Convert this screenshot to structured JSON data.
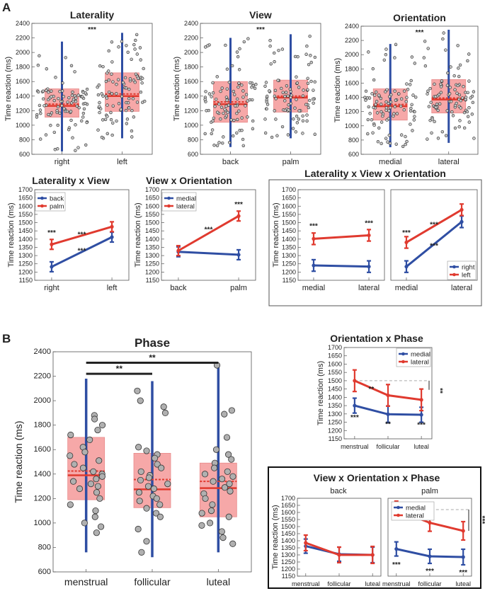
{
  "panel_labels": [
    "A",
    "B"
  ],
  "colors": {
    "blue": "#2f4ea3",
    "red": "#e03a2f",
    "boxfill": "#f6a8a8",
    "boxedge": "#e88a8a",
    "dot": "#b0b0b0",
    "dashed": "#aaaaaa"
  },
  "chart_data": [
    {
      "id": "laterality",
      "type": "box",
      "title": "Laterality",
      "ylabel": "Time reaction (ms)",
      "ylim": [
        600,
        2400
      ],
      "yticks": [
        600,
        800,
        1000,
        1200,
        1400,
        1600,
        1800,
        2000,
        2200,
        2400
      ],
      "categories": [
        "right",
        "left"
      ],
      "boxes": [
        {
          "q1": 1110,
          "q3": 1500,
          "median": 1265,
          "mean": 1290,
          "whisker_low": 640,
          "whisker_high": 2150
        },
        {
          "q1": 1190,
          "q3": 1720,
          "median": 1400,
          "mean": 1430,
          "whisker_low": 820,
          "whisker_high": 2270
        }
      ],
      "significance": "***"
    },
    {
      "id": "view",
      "type": "box",
      "title": "View",
      "ylabel": "Time reaction (ms)",
      "ylim": [
        600,
        2400
      ],
      "yticks": [
        600,
        800,
        1000,
        1200,
        1400,
        1600,
        1800,
        2000,
        2200,
        2400
      ],
      "categories": [
        "back",
        "palm"
      ],
      "boxes": [
        {
          "q1": 1040,
          "q3": 1600,
          "median": 1290,
          "mean": 1320,
          "whisker_low": 700,
          "whisker_high": 2200
        },
        {
          "q1": 1180,
          "q3": 1620,
          "median": 1380,
          "mean": 1400,
          "whisker_low": 820,
          "whisker_high": 2250
        }
      ],
      "significance": "***"
    },
    {
      "id": "orientation",
      "type": "box",
      "title": "Orientation",
      "ylabel": "Time reaction (ms)",
      "ylim": [
        600,
        2400
      ],
      "yticks": [
        600,
        800,
        1000,
        1200,
        1400,
        1600,
        1800,
        2000,
        2200,
        2400
      ],
      "categories": [
        "medial",
        "lateral"
      ],
      "boxes": [
        {
          "q1": 1080,
          "q3": 1520,
          "median": 1275,
          "mean": 1300,
          "whisker_low": 700,
          "whisker_high": 2150
        },
        {
          "q1": 1180,
          "q3": 1650,
          "median": 1370,
          "mean": 1390,
          "whisker_low": 760,
          "whisker_high": 2350
        }
      ],
      "significance": "***"
    },
    {
      "id": "lat_view",
      "type": "line",
      "title": "Laterality x View",
      "ylabel": "Time reaction (ms)",
      "ylim": [
        1150,
        1700
      ],
      "yticks": [
        1150,
        1200,
        1250,
        1300,
        1350,
        1400,
        1450,
        1500,
        1550,
        1600,
        1650,
        1700
      ],
      "categories": [
        "right",
        "left"
      ],
      "series": [
        {
          "name": "back",
          "color": "blue",
          "values": [
            1232,
            1412
          ],
          "err": [
            30,
            30
          ]
        },
        {
          "name": "palm",
          "color": "red",
          "values": [
            1368,
            1475
          ],
          "err": [
            30,
            30
          ]
        }
      ],
      "legend": [
        "back",
        "palm"
      ],
      "legend_position": "top-left",
      "annotations": [
        {
          "text": "***",
          "x": 0,
          "y": 1425
        },
        {
          "text": "***",
          "x": 0.5,
          "y": 1415
        },
        {
          "text": "***",
          "x": 0.5,
          "y": 1315
        }
      ]
    },
    {
      "id": "view_orient",
      "type": "line",
      "title": "View x Orientation",
      "ylabel": "Time reaction (ms)",
      "ylim": [
        1150,
        1700
      ],
      "yticks": [
        1150,
        1200,
        1250,
        1300,
        1350,
        1400,
        1450,
        1500,
        1550,
        1600,
        1650,
        1700
      ],
      "categories": [
        "back",
        "palm"
      ],
      "series": [
        {
          "name": "medial",
          "color": "blue",
          "values": [
            1323,
            1305
          ],
          "err": [
            30,
            30
          ]
        },
        {
          "name": "lateral",
          "color": "red",
          "values": [
            1330,
            1540
          ],
          "err": [
            30,
            30
          ]
        }
      ],
      "legend": [
        "medial",
        "lateral"
      ],
      "legend_position": "top-left",
      "annotations": [
        {
          "text": "***",
          "x": 1,
          "y": 1597
        },
        {
          "text": "***",
          "x": 0.5,
          "y": 1445
        }
      ]
    },
    {
      "id": "lat_view_orient",
      "type": "line",
      "title": "Laterality x View x Orientation",
      "ylabel": "Time reaction (ms)",
      "ylim": [
        1150,
        1700
      ],
      "yticks": [
        1150,
        1200,
        1250,
        1300,
        1350,
        1400,
        1450,
        1500,
        1550,
        1600,
        1650,
        1700
      ],
      "categories": [
        "medial",
        "lateral"
      ],
      "panels": [
        {
          "series": [
            {
              "name": "right",
              "color": "blue",
              "values": [
                1240,
                1233
              ],
              "err": [
                35,
                35
              ]
            },
            {
              "name": "left",
              "color": "red",
              "values": [
                1402,
                1423
              ],
              "err": [
                35,
                35
              ]
            }
          ],
          "annotations": [
            {
              "text": "***",
              "x": 0,
              "y": 1465
            },
            {
              "text": "***",
              "x": 1,
              "y": 1482
            }
          ]
        },
        {
          "series": [
            {
              "name": "right",
              "color": "blue",
              "values": [
                1233,
                1505
              ],
              "err": [
                35,
                35
              ]
            },
            {
              "name": "left",
              "color": "red",
              "values": [
                1380,
                1578
              ],
              "err": [
                35,
                35
              ]
            }
          ],
          "annotations": [
            {
              "text": "***",
              "x": 0,
              "y": 1425
            },
            {
              "text": "***",
              "x": 0.5,
              "y": 1475
            },
            {
              "text": "***",
              "x": 0.5,
              "y": 1345
            }
          ]
        }
      ],
      "legend": [
        "right",
        "left"
      ],
      "legend_position": "bottom-right"
    },
    {
      "id": "phase",
      "type": "box",
      "title": "Phase",
      "ylabel": "Time reaction (ms)",
      "ylim": [
        600,
        2400
      ],
      "yticks": [
        600,
        800,
        1000,
        1200,
        1400,
        1600,
        1800,
        2000,
        2200,
        2400
      ],
      "categories": [
        "menstrual",
        "follicular",
        "luteal"
      ],
      "boxes": [
        {
          "q1": 1190,
          "q3": 1700,
          "median": 1390,
          "mean": 1425,
          "whisker_low": 760,
          "whisker_high": 2180
        },
        {
          "q1": 1125,
          "q3": 1570,
          "median": 1275,
          "mean": 1355,
          "whisker_low": 720,
          "whisker_high": 2160
        },
        {
          "q1": 1050,
          "q3": 1490,
          "median": 1285,
          "mean": 1340,
          "whisker_low": 760,
          "whisker_high": 2300
        }
      ],
      "points": [
        [
          1880,
          1850,
          1800,
          1760,
          1720,
          1680,
          1620,
          1580,
          1550,
          1510,
          1480,
          1450,
          1420,
          1400,
          1380,
          1360,
          1340,
          1320,
          1300,
          1280,
          1250,
          1200,
          1150,
          1100,
          1050,
          1000,
          970,
          920
        ],
        [
          2080,
          2000,
          1950,
          1900,
          1620,
          1590,
          1560,
          1530,
          1480,
          1450,
          1420,
          1390,
          1370,
          1350,
          1320,
          1300,
          1280,
          1250,
          1220,
          1200,
          1180,
          1150,
          1120,
          1080,
          1050,
          950,
          850,
          760
        ],
        [
          2290,
          1920,
          1890,
          1700,
          1600,
          1560,
          1520,
          1490,
          1450,
          1420,
          1400,
          1380,
          1360,
          1340,
          1320,
          1290,
          1260,
          1240,
          1200,
          1150,
          1100,
          1080,
          1050,
          1000,
          980,
          930,
          880,
          830
        ]
      ],
      "brackets": [
        {
          "from": 0,
          "to": 2,
          "text": "**",
          "y": 2310
        },
        {
          "from": 0,
          "to": 1,
          "text": "**",
          "y": 2220
        }
      ]
    },
    {
      "id": "orient_phase",
      "type": "line",
      "title": "Orientation x Phase",
      "ylabel": "Time reaction (ms)",
      "ylim": [
        1150,
        1700
      ],
      "yticks": [
        1150,
        1200,
        1250,
        1300,
        1350,
        1400,
        1450,
        1500,
        1550,
        1600,
        1650,
        1700
      ],
      "categories": [
        "menstrual",
        "follicular",
        "luteal"
      ],
      "series": [
        {
          "name": "medial",
          "color": "blue",
          "values": [
            1350,
            1298,
            1295
          ],
          "err": [
            45,
            50,
            45
          ]
        },
        {
          "name": "lateral",
          "color": "red",
          "values": [
            1500,
            1412,
            1385
          ],
          "err": [
            65,
            65,
            65
          ]
        }
      ],
      "legend": [
        "medial",
        "lateral"
      ],
      "legend_position": "top-right",
      "annotations": [
        {
          "text": "***",
          "x": 0,
          "y": 1265
        },
        {
          "text": "**",
          "x": 1,
          "y": 1225
        },
        {
          "text": "***",
          "x": 2,
          "y": 1220
        },
        {
          "text": "**",
          "x": 0.5,
          "y": 1435
        },
        {
          "text": "**",
          "x": 2.5,
          "y": 1440
        }
      ],
      "reference_line": 1500
    },
    {
      "id": "view_orient_phase",
      "type": "line",
      "title": "View x Orientation x Phase",
      "ylabel": "Time reaction (ms)",
      "ylim": [
        1150,
        1700
      ],
      "yticks": [
        1150,
        1200,
        1250,
        1300,
        1350,
        1400,
        1450,
        1500,
        1550,
        1600,
        1650,
        1700
      ],
      "categories": [
        "menstrual",
        "follicular",
        "luteal"
      ],
      "panels": [
        {
          "subtitle": "back",
          "series": [
            {
              "name": "medial",
              "color": "blue",
              "values": [
                1362,
                1305,
                1300
              ],
              "err": [
                50,
                50,
                55
              ]
            },
            {
              "name": "lateral",
              "color": "red",
              "values": [
                1385,
                1300,
                1300
              ],
              "err": [
                55,
                55,
                60
              ]
            }
          ],
          "annotations": []
        },
        {
          "subtitle": "palm",
          "series": [
            {
              "name": "medial",
              "color": "blue",
              "values": [
                1342,
                1290,
                1285
              ],
              "err": [
                50,
                50,
                55
              ]
            },
            {
              "name": "lateral",
              "color": "red",
              "values": [
                1620,
                1527,
                1470
              ],
              "err": [
                60,
                60,
                65
              ]
            }
          ],
          "annotations": [
            {
              "text": "***",
              "x": 0,
              "y": 1215
            },
            {
              "text": "***",
              "x": 1,
              "y": 1170
            },
            {
              "text": "***",
              "x": 2,
              "y": 1160
            },
            {
              "text": "***",
              "x": 2.5,
              "y": 1548
            }
          ],
          "reference_line": 1620
        }
      ],
      "legend": [
        "medial",
        "lateral"
      ],
      "legend_position": "top-left"
    }
  ]
}
